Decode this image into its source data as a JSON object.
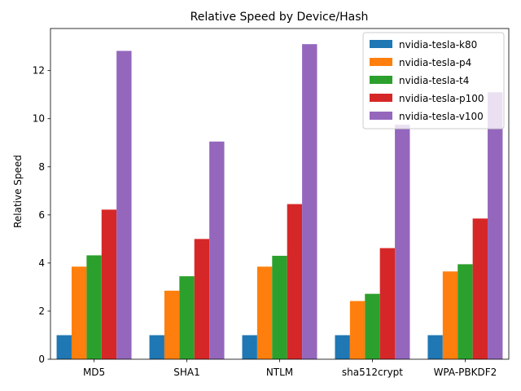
{
  "chart_data": {
    "type": "bar",
    "title": "Relative Speed by Device/Hash",
    "xlabel": "",
    "ylabel": "Relative Speed",
    "categories": [
      "MD5",
      "SHA1",
      "NTLM",
      "sha512crypt",
      "WPA-PBKDF2"
    ],
    "ylim": [
      0,
      13.75
    ],
    "yticks": [
      0,
      2,
      4,
      6,
      8,
      10,
      12
    ],
    "grid": false,
    "legend_position": "top-right",
    "series": [
      {
        "name": "nvidia-tesla-k80",
        "color": "#1f77b4",
        "values": [
          1.0,
          1.0,
          1.0,
          1.0,
          1.0
        ]
      },
      {
        "name": "nvidia-tesla-p4",
        "color": "#ff7f0e",
        "values": [
          3.85,
          2.85,
          3.85,
          2.42,
          3.65
        ]
      },
      {
        "name": "nvidia-tesla-t4",
        "color": "#2ca02c",
        "values": [
          4.32,
          3.45,
          4.3,
          2.72,
          3.95
        ]
      },
      {
        "name": "nvidia-tesla-p100",
        "color": "#d62728",
        "values": [
          6.22,
          5.0,
          6.45,
          4.62,
          5.85
        ]
      },
      {
        "name": "nvidia-tesla-v100",
        "color": "#9467bd",
        "values": [
          12.82,
          9.05,
          13.1,
          9.75,
          11.1
        ]
      }
    ]
  }
}
